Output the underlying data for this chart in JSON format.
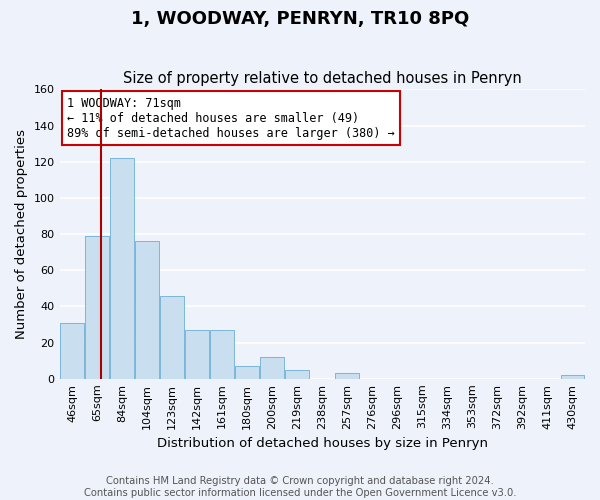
{
  "title": "1, WOODWAY, PENRYN, TR10 8PQ",
  "subtitle": "Size of property relative to detached houses in Penryn",
  "xlabel": "Distribution of detached houses by size in Penryn",
  "ylabel": "Number of detached properties",
  "categories": [
    "46sqm",
    "65sqm",
    "84sqm",
    "104sqm",
    "123sqm",
    "142sqm",
    "161sqm",
    "180sqm",
    "200sqm",
    "219sqm",
    "238sqm",
    "257sqm",
    "276sqm",
    "296sqm",
    "315sqm",
    "334sqm",
    "353sqm",
    "372sqm",
    "392sqm",
    "411sqm",
    "430sqm"
  ],
  "values": [
    31,
    79,
    122,
    76,
    46,
    27,
    27,
    7,
    12,
    5,
    0,
    3,
    0,
    0,
    0,
    0,
    0,
    0,
    0,
    0,
    2
  ],
  "bar_color": "#c9dff0",
  "bar_edge_color": "#6baed6",
  "red_line_x": 1.15,
  "highlight_line_color": "#aa0000",
  "ylim": [
    0,
    160
  ],
  "yticks": [
    0,
    20,
    40,
    60,
    80,
    100,
    120,
    140,
    160
  ],
  "annotation_box_text": "1 WOODWAY: 71sqm\n← 11% of detached houses are smaller (49)\n89% of semi-detached houses are larger (380) →",
  "annotation_box_edge_color": "#cc0000",
  "footer_line1": "Contains HM Land Registry data © Crown copyright and database right 2024.",
  "footer_line2": "Contains public sector information licensed under the Open Government Licence v3.0.",
  "background_color": "#eef2fa",
  "grid_color": "#ffffff",
  "title_fontsize": 13,
  "subtitle_fontsize": 10.5,
  "axis_label_fontsize": 9.5,
  "tick_fontsize": 8,
  "annotation_fontsize": 8.5,
  "footer_fontsize": 7.2
}
